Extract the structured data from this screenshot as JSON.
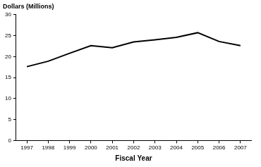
{
  "chart_data": {
    "type": "line",
    "y_label": "Dollars (Millions)",
    "x_label": "Fiscal Year",
    "categories": [
      "1997",
      "1998",
      "1999",
      "2000",
      "2001",
      "2002",
      "2003",
      "2004",
      "2005",
      "2006",
      "2007"
    ],
    "values": [
      17.6,
      18.9,
      20.8,
      22.6,
      22.1,
      23.5,
      24.0,
      24.6,
      25.7,
      23.6,
      22.6
    ],
    "color": "#000000",
    "ylim": [
      0,
      30
    ],
    "yticks": [
      0,
      5,
      10,
      15,
      20,
      25,
      30
    ],
    "grid": false
  }
}
